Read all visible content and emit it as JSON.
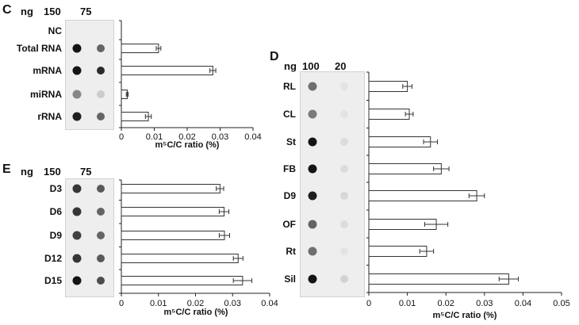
{
  "panels": [
    {
      "letter": "C",
      "ng_label": "ng",
      "amounts": [
        "150",
        "75"
      ],
      "rows": [
        "NC",
        "Total RNA",
        "mRNA",
        "miRNA",
        "rRNA"
      ],
      "dot_intensity": [
        [
          0.0,
          0.0
        ],
        [
          0.95,
          0.6
        ],
        [
          0.95,
          0.85
        ],
        [
          0.45,
          0.15
        ],
        [
          0.9,
          0.6
        ]
      ],
      "xlabel": "m⁵C/C ratio (%)"
    },
    {
      "letter": "E",
      "ng_label": "ng",
      "amounts": [
        "150",
        "75"
      ],
      "rows": [
        "D3",
        "D6",
        "D9",
        "D12",
        "D15"
      ],
      "dot_intensity": [
        [
          0.8,
          0.65
        ],
        [
          0.8,
          0.6
        ],
        [
          0.75,
          0.6
        ],
        [
          0.8,
          0.65
        ],
        [
          0.95,
          0.7
        ]
      ],
      "xlabel": "m⁵C/C ratio (%)"
    },
    {
      "letter": "D",
      "ng_label": "ng",
      "amounts": [
        "100",
        "20"
      ],
      "rows": [
        "RL",
        "CL",
        "St",
        "FB",
        "D9",
        "OF",
        "Rt",
        "Sil"
      ],
      "dot_intensity": [
        [
          0.55,
          0.05
        ],
        [
          0.5,
          0.05
        ],
        [
          0.95,
          0.08
        ],
        [
          0.95,
          0.08
        ],
        [
          0.9,
          0.1
        ],
        [
          0.6,
          0.08
        ],
        [
          0.55,
          0.05
        ],
        [
          0.95,
          0.12
        ]
      ],
      "xlabel": "m⁵C/C ratio (%)"
    }
  ],
  "chart_data": [
    {
      "type": "bar",
      "orientation": "horizontal",
      "categories": [
        "NC",
        "Total RNA",
        "mRNA",
        "miRNA",
        "rRNA"
      ],
      "values": [
        0,
        0.0113,
        0.0278,
        0.0018,
        0.0082
      ],
      "errors": [
        0,
        0.0007,
        0.0009,
        0.0003,
        0.0009
      ],
      "xlim": [
        0,
        0.04
      ],
      "xticks": [
        "0",
        "0.01",
        "0.02",
        "0.03",
        "0.04"
      ],
      "xlabel": "m⁵C/C ratio (%)"
    },
    {
      "type": "bar",
      "orientation": "horizontal",
      "categories": [
        "D3",
        "D6",
        "D9",
        "D12",
        "D15"
      ],
      "values": [
        0.0266,
        0.0277,
        0.0278,
        0.0315,
        0.0327
      ],
      "errors": [
        0.001,
        0.0013,
        0.0014,
        0.0013,
        0.0025
      ],
      "xlim": [
        0,
        0.04
      ],
      "xticks": [
        "0",
        "0.01",
        "0.02",
        "0.03",
        "0.04"
      ],
      "xlabel": "m⁵C/C ratio (%)"
    },
    {
      "type": "bar",
      "orientation": "horizontal",
      "categories": [
        "RL",
        "CL",
        "St",
        "FB",
        "D9",
        "OF",
        "Rt",
        "Sil"
      ],
      "values": [
        0.01,
        0.0105,
        0.016,
        0.0188,
        0.028,
        0.0175,
        0.015,
        0.0363
      ],
      "errors": [
        0.0012,
        0.001,
        0.0018,
        0.002,
        0.002,
        0.003,
        0.0018,
        0.0025
      ],
      "xlim": [
        0,
        0.05
      ],
      "xticks": [
        "0",
        "0.01",
        "0.02",
        "0.03",
        "0.04",
        "0.05"
      ],
      "xlabel": "m⁵C/C ratio (%)"
    }
  ]
}
